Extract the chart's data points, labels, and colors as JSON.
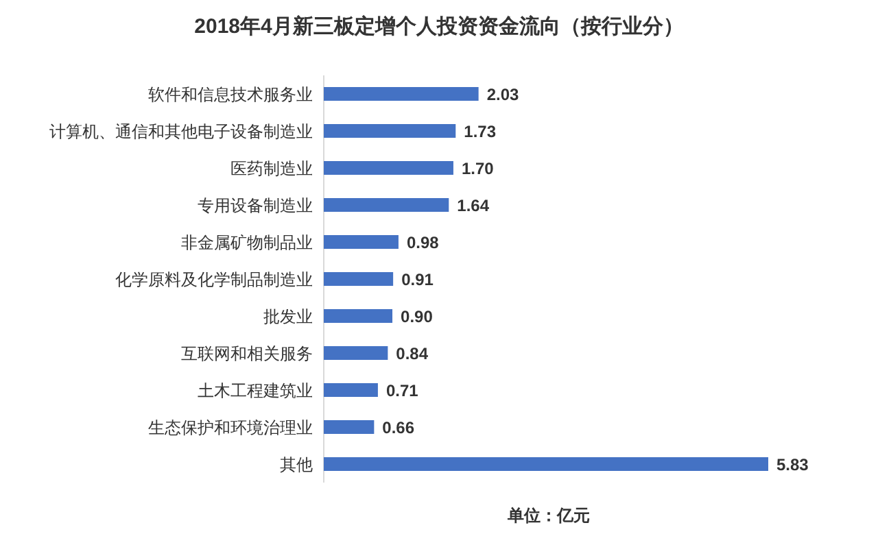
{
  "chart_data": {
    "type": "bar",
    "orientation": "horizontal",
    "title": "2018年4月新三板定增个人投资资金流向（按行业分）",
    "categories": [
      "软件和信息技术服务业",
      "计算机、通信和其他电子设备制造业",
      "医药制造业",
      "专用设备制造业",
      "非金属矿物制品业",
      "化学原料及化学制品制造业",
      "批发业",
      "互联网和相关服务",
      "土木工程建筑业",
      "生态保护和环境治理业",
      "其他"
    ],
    "values": [
      2.03,
      1.73,
      1.7,
      1.64,
      0.98,
      0.91,
      0.9,
      0.84,
      0.71,
      0.66,
      5.83
    ],
    "value_labels": [
      "2.03",
      "1.73",
      "1.70",
      "1.64",
      "0.98",
      "0.91",
      "0.90",
      "0.84",
      "0.71",
      "0.66",
      "5.83"
    ],
    "color": "#4472c4",
    "annotations": [
      "单位：亿元"
    ]
  }
}
